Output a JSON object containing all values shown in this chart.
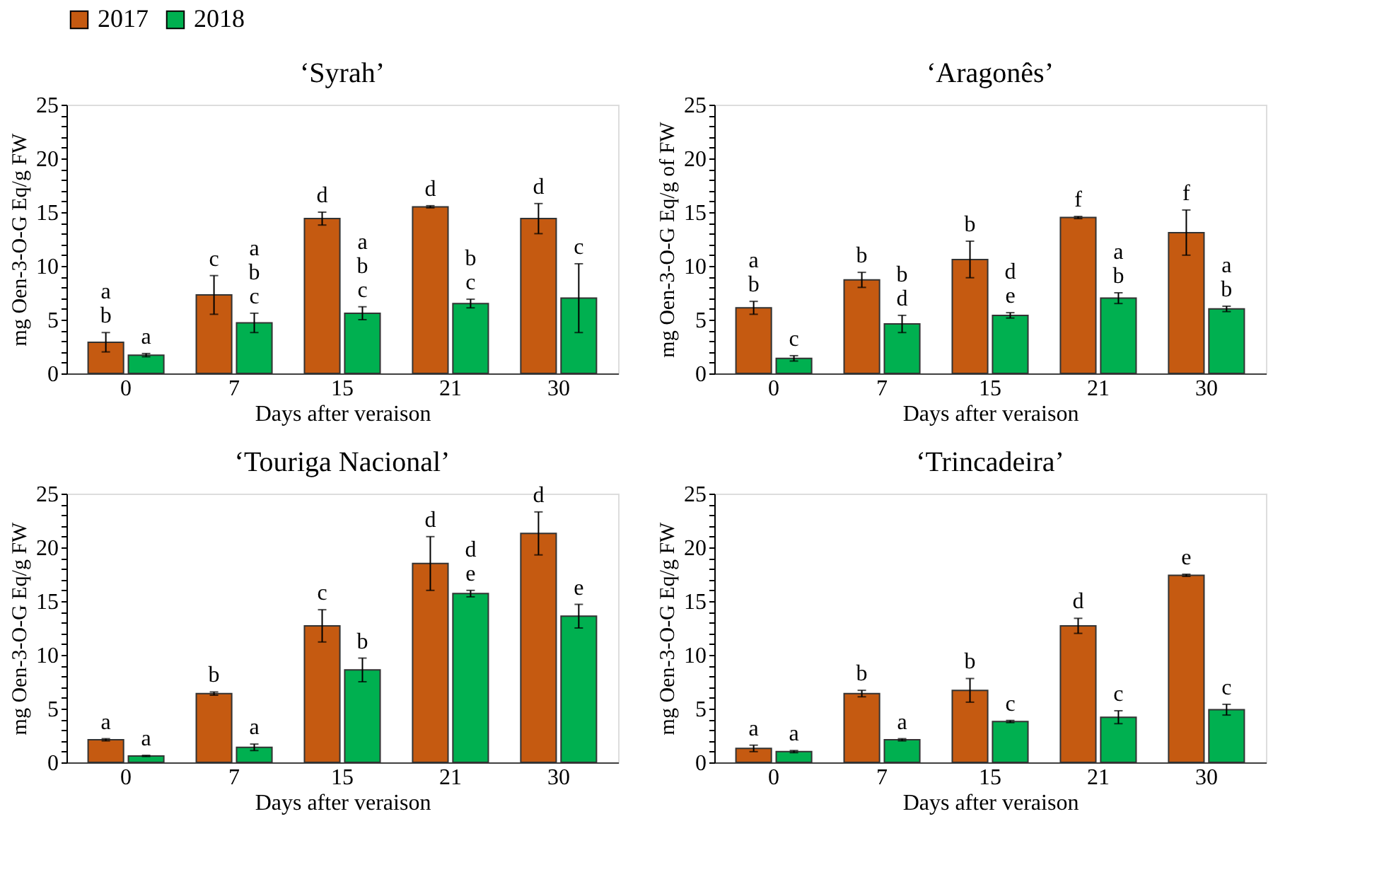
{
  "chart_data": [
    {
      "type": "bar",
      "title": "‘Syrah’",
      "xlabel": "Days after veraison",
      "ylabel": "mg Oen-3-O-G Eq/g FW",
      "categories": [
        "0",
        "7",
        "15",
        "21",
        "30"
      ],
      "ylim": [
        0,
        25
      ],
      "yticks": [
        0,
        {
          "value": 1,
          "label": null
        },
        {
          "value": 2,
          "label": null
        },
        {
          "value": 3,
          "label": null
        },
        {
          "value": 4,
          "label": null
        },
        5,
        {
          "value": 6,
          "label": null
        },
        {
          "value": 7,
          "label": null
        },
        {
          "value": 8,
          "label": null
        },
        {
          "value": 9,
          "label": null
        },
        10,
        {
          "value": 11,
          "label": null
        },
        {
          "value": 12,
          "label": null
        },
        {
          "value": 13,
          "label": null
        },
        {
          "value": 14,
          "label": null
        },
        15,
        {
          "value": 16,
          "label": null
        },
        {
          "value": 17,
          "label": null
        },
        {
          "value": 18,
          "label": null
        },
        {
          "value": 19,
          "label": null
        },
        20,
        {
          "value": 21,
          "label": null
        },
        {
          "value": 22,
          "label": null
        },
        {
          "value": 23,
          "label": null
        },
        {
          "value": 24,
          "label": null
        },
        25
      ],
      "legend": "top",
      "grid": false,
      "series": [
        {
          "name": "2017",
          "color": "#c55a11",
          "values": [
            2.9,
            7.3,
            14.4,
            15.5,
            14.4
          ],
          "errors": [
            0.9,
            1.8,
            0.6,
            0.1,
            1.4
          ],
          "value_labels": [
            "ab",
            "c",
            "d",
            "d",
            "d"
          ]
        },
        {
          "name": "2018",
          "color": "#00b050",
          "values": [
            1.7,
            4.7,
            5.6,
            6.5,
            7.0
          ],
          "errors": [
            0.15,
            0.9,
            0.6,
            0.4,
            3.2
          ],
          "value_labels": [
            "a",
            "abc",
            "abc",
            "bc",
            "c"
          ]
        }
      ]
    },
    {
      "type": "bar",
      "title": "‘Aragonês’",
      "xlabel": "Days after veraison",
      "ylabel": "mg Oen-3-O-G Eq/g of FW",
      "categories": [
        "0",
        "7",
        "15",
        "21",
        "30"
      ],
      "ylim": [
        0,
        25
      ],
      "yticks": [
        0,
        {
          "value": 1,
          "label": null
        },
        {
          "value": 2,
          "label": null
        },
        {
          "value": 3,
          "label": null
        },
        {
          "value": 4,
          "label": null
        },
        5,
        {
          "value": 6,
          "label": null
        },
        {
          "value": 7,
          "label": null
        },
        {
          "value": 8,
          "label": null
        },
        {
          "value": 9,
          "label": null
        },
        10,
        {
          "value": 11,
          "label": null
        },
        {
          "value": 12,
          "label": null
        },
        {
          "value": 13,
          "label": null
        },
        {
          "value": 14,
          "label": null
        },
        15,
        {
          "value": 16,
          "label": null
        },
        {
          "value": 17,
          "label": null
        },
        {
          "value": 18,
          "label": null
        },
        {
          "value": 19,
          "label": null
        },
        20,
        {
          "value": 21,
          "label": null
        },
        {
          "value": 22,
          "label": null
        },
        {
          "value": 23,
          "label": null
        },
        {
          "value": 24,
          "label": null
        },
        25
      ],
      "legend": "top",
      "grid": false,
      "series": [
        {
          "name": "2017",
          "color": "#c55a11",
          "values": [
            6.1,
            8.7,
            10.6,
            14.5,
            13.1
          ],
          "errors": [
            0.6,
            0.7,
            1.7,
            0.1,
            2.1
          ],
          "value_labels": [
            "ab",
            "b",
            "b",
            "f",
            "f"
          ]
        },
        {
          "name": "2018",
          "color": "#00b050",
          "values": [
            1.4,
            4.6,
            5.4,
            7.0,
            6.0
          ],
          "errors": [
            0.25,
            0.8,
            0.25,
            0.5,
            0.25
          ],
          "value_labels": [
            "c",
            "bd",
            "de",
            "ab",
            "ab"
          ]
        }
      ]
    },
    {
      "type": "bar",
      "title": "‘Touriga Nacional’",
      "xlabel": "Days after veraison",
      "ylabel": "mg Oen-3-O-G Eq/g FW",
      "categories": [
        "0",
        "7",
        "15",
        "21",
        "30"
      ],
      "ylim": [
        0,
        25
      ],
      "yticks": [
        0,
        {
          "value": 1,
          "label": null
        },
        {
          "value": 2,
          "label": null
        },
        {
          "value": 3,
          "label": null
        },
        {
          "value": 4,
          "label": null
        },
        5,
        {
          "value": 6,
          "label": null
        },
        {
          "value": 7,
          "label": null
        },
        {
          "value": 8,
          "label": null
        },
        {
          "value": 9,
          "label": null
        },
        10,
        {
          "value": 11,
          "label": null
        },
        {
          "value": 12,
          "label": null
        },
        {
          "value": 13,
          "label": null
        },
        {
          "value": 14,
          "label": null
        },
        15,
        {
          "value": 16,
          "label": null
        },
        {
          "value": 17,
          "label": null
        },
        {
          "value": 18,
          "label": null
        },
        {
          "value": 19,
          "label": null
        },
        20,
        {
          "value": 21,
          "label": null
        },
        {
          "value": 22,
          "label": null
        },
        {
          "value": 23,
          "label": null
        },
        {
          "value": 24,
          "label": null
        },
        25
      ],
      "legend": "top",
      "grid": false,
      "series": [
        {
          "name": "2017",
          "color": "#c55a11",
          "values": [
            2.1,
            6.4,
            12.7,
            18.5,
            21.3
          ],
          "errors": [
            0.1,
            0.15,
            1.5,
            2.5,
            2.0
          ],
          "value_labels": [
            "a",
            "b",
            "c",
            "d",
            "d"
          ]
        },
        {
          "name": "2018",
          "color": "#00b050",
          "values": [
            0.6,
            1.4,
            8.6,
            15.7,
            13.6
          ],
          "errors": [
            0.05,
            0.3,
            1.1,
            0.3,
            1.1
          ],
          "value_labels": [
            "a",
            "a",
            "b",
            "de",
            "e"
          ]
        }
      ]
    },
    {
      "type": "bar",
      "title": "‘Trincadeira’",
      "xlabel": "Days after veraison",
      "ylabel": "mg Oen-3-O-G Eq/g FW",
      "categories": [
        "0",
        "7",
        "15",
        "21",
        "30"
      ],
      "ylim": [
        0,
        25
      ],
      "yticks": [
        0,
        {
          "value": 1,
          "label": null
        },
        {
          "value": 2,
          "label": null
        },
        {
          "value": 3,
          "label": null
        },
        {
          "value": 4,
          "label": null
        },
        5,
        {
          "value": 6,
          "label": null
        },
        {
          "value": 7,
          "label": null
        },
        {
          "value": 8,
          "label": null
        },
        {
          "value": 9,
          "label": null
        },
        10,
        {
          "value": 11,
          "label": null
        },
        {
          "value": 12,
          "label": null
        },
        {
          "value": 13,
          "label": null
        },
        {
          "value": 14,
          "label": null
        },
        15,
        {
          "value": 16,
          "label": null
        },
        {
          "value": 17,
          "label": null
        },
        {
          "value": 18,
          "label": null
        },
        {
          "value": 19,
          "label": null
        },
        20,
        {
          "value": 21,
          "label": null
        },
        {
          "value": 22,
          "label": null
        },
        {
          "value": 23,
          "label": null
        },
        {
          "value": 24,
          "label": null
        },
        25
      ],
      "legend": "top",
      "grid": false,
      "series": [
        {
          "name": "2017",
          "color": "#c55a11",
          "values": [
            1.3,
            6.4,
            6.7,
            12.7,
            17.4
          ],
          "errors": [
            0.3,
            0.3,
            1.1,
            0.7,
            0.1
          ],
          "value_labels": [
            "a",
            "b",
            "b",
            "d",
            "e"
          ]
        },
        {
          "name": "2018",
          "color": "#00b050",
          "values": [
            1.0,
            2.1,
            3.8,
            4.2,
            4.9
          ],
          "errors": [
            0.1,
            0.1,
            0.1,
            0.6,
            0.5
          ],
          "value_labels": [
            "a",
            "a",
            "c",
            "c",
            "c"
          ]
        }
      ]
    }
  ]
}
